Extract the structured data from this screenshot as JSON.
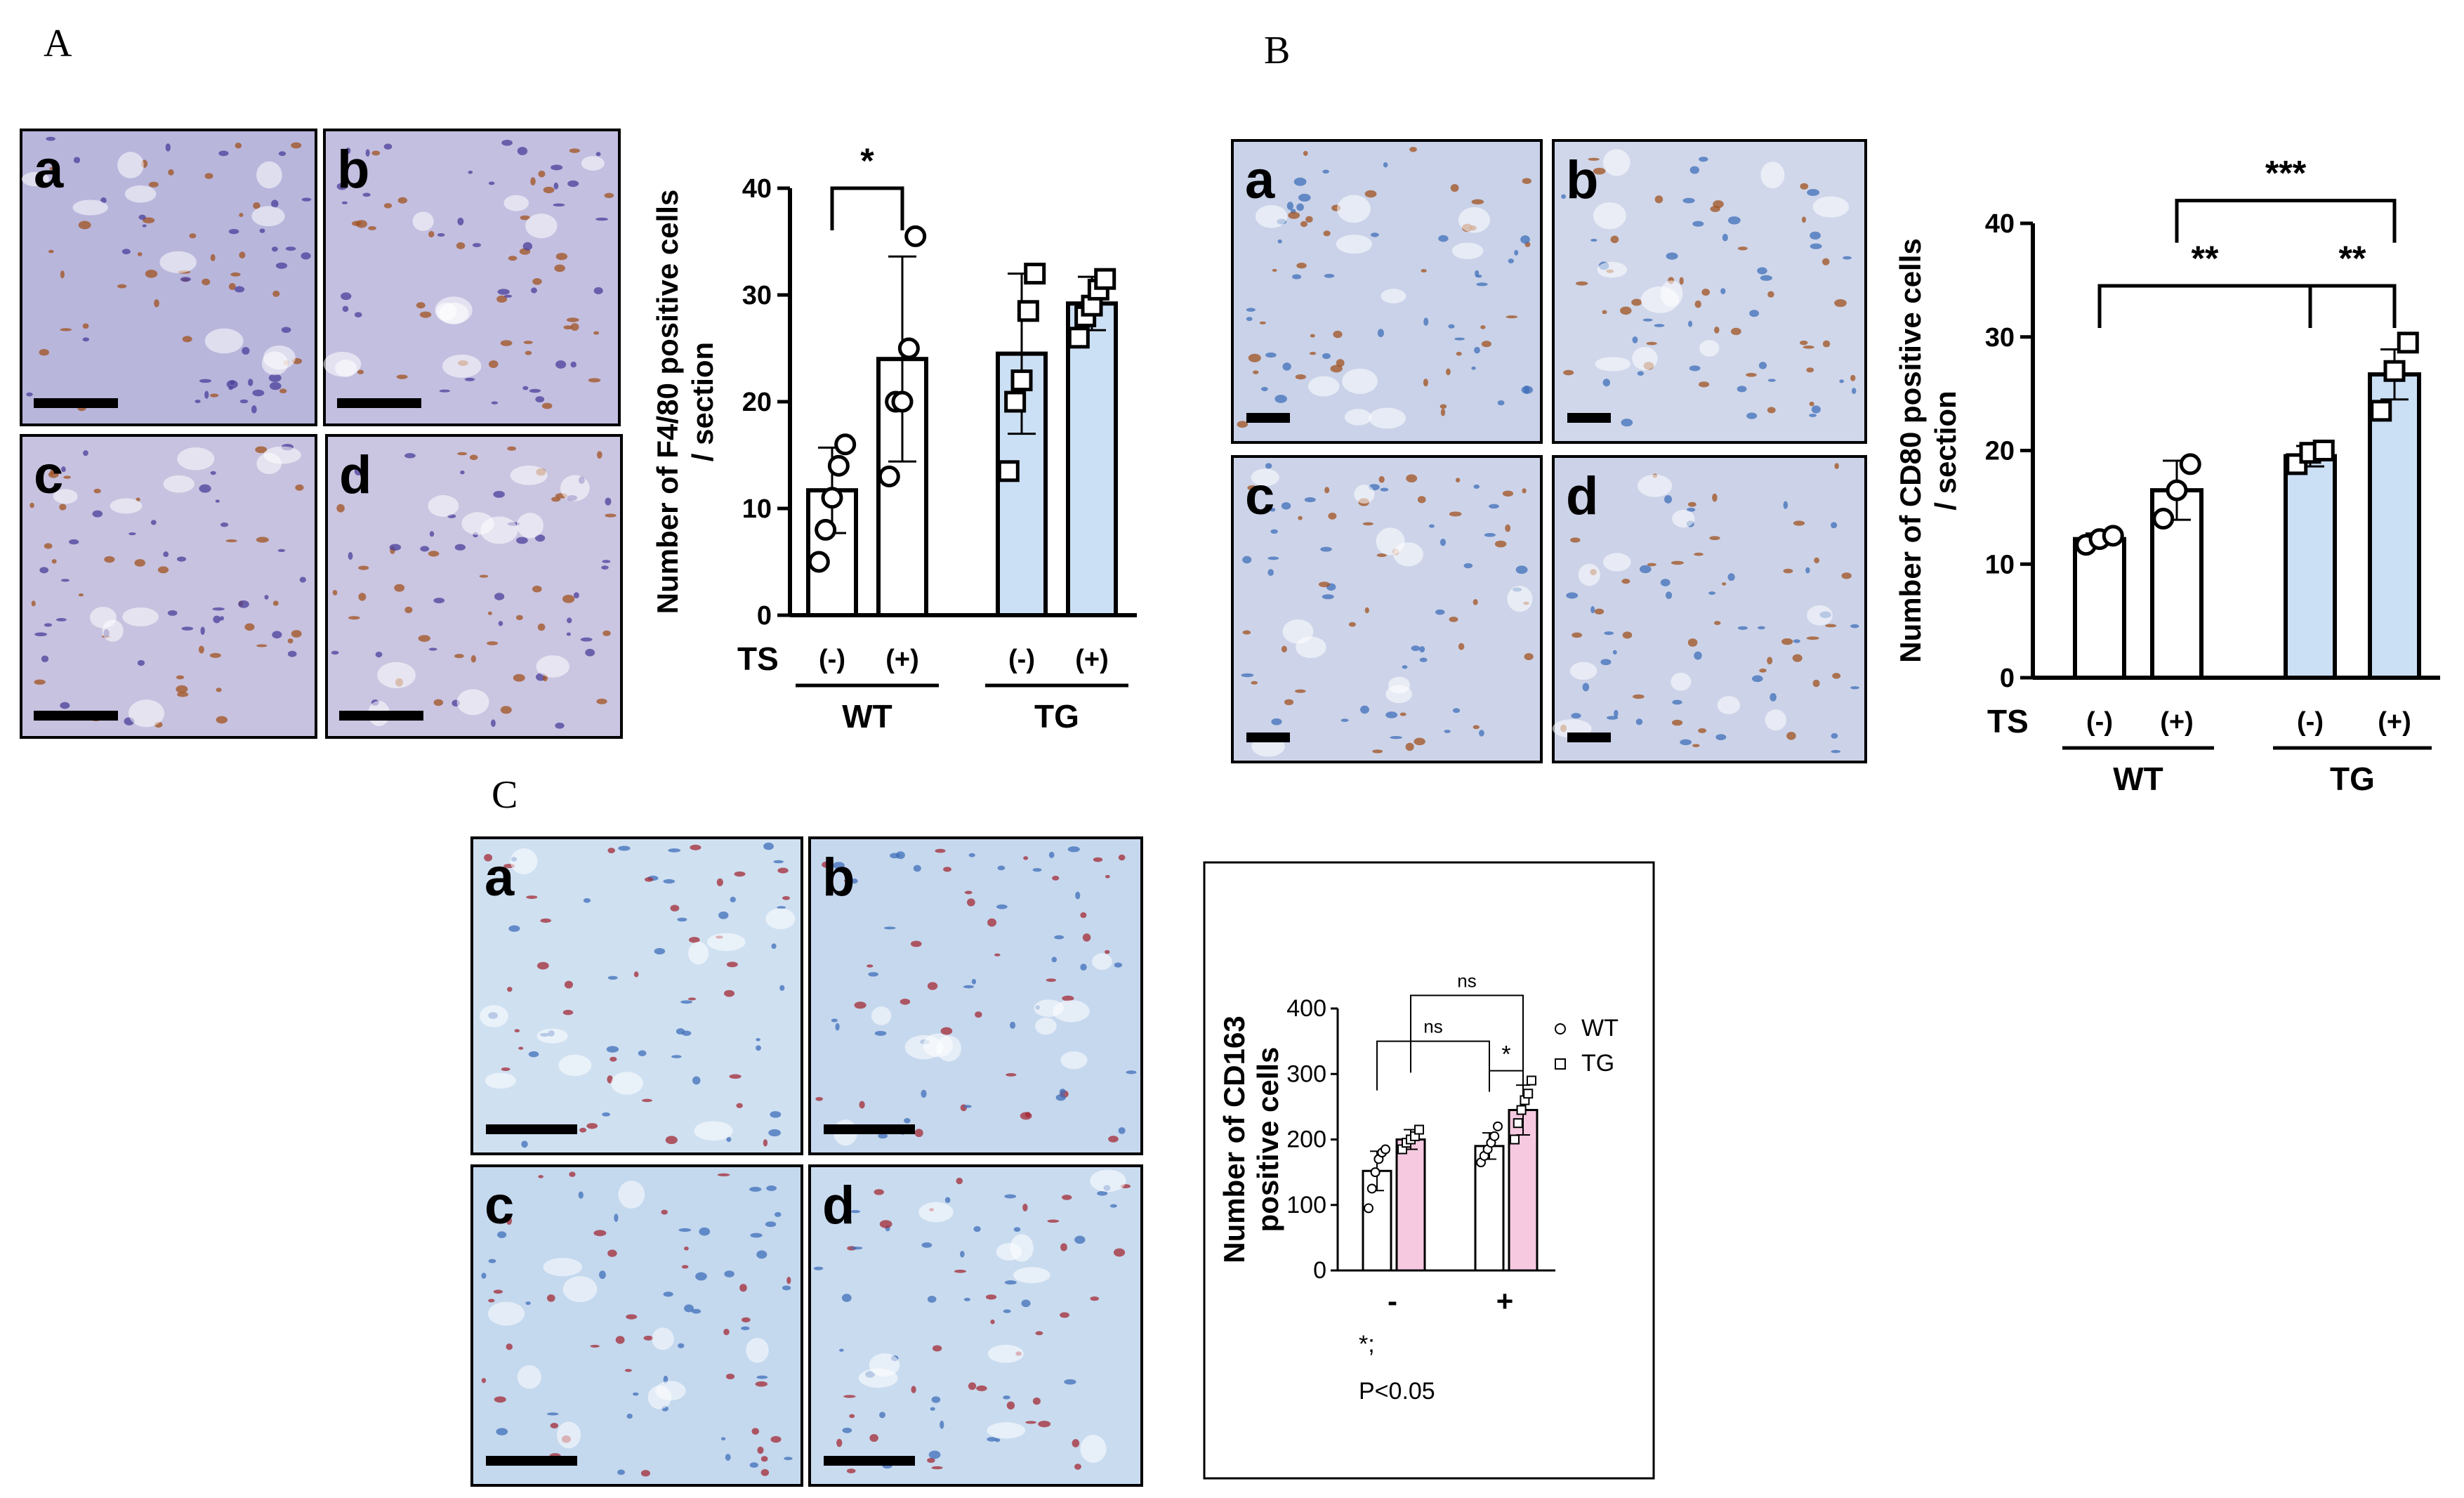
{
  "panels": {
    "A": "A",
    "B": "B",
    "C": "C"
  },
  "images": {
    "A": [
      {
        "label": "a",
        "color": "#b9b6dc"
      },
      {
        "label": "b",
        "color": "#c3bfe0"
      },
      {
        "label": "c",
        "color": "#c7c2df"
      },
      {
        "label": "d",
        "color": "#cac5e1"
      }
    ],
    "B": [
      {
        "label": "a",
        "color": "#c9d2e8"
      },
      {
        "label": "b",
        "color": "#d0d7ea"
      },
      {
        "label": "c",
        "color": "#cdd4e9"
      },
      {
        "label": "d",
        "color": "#ccd3e8"
      }
    ],
    "C": [
      {
        "label": "a",
        "color": "#cfe0f1"
      },
      {
        "label": "b",
        "color": "#c6d8ee"
      },
      {
        "label": "c",
        "color": "#c4d8ee"
      },
      {
        "label": "d",
        "color": "#c9dbef"
      }
    ],
    "colors": {
      "dots_purple": "#4a3f9b",
      "dots_brown": "#a0521f",
      "dots_blue": "#3f6fb9",
      "dots_red": "#a32a34"
    }
  },
  "chart_data": [
    {
      "type": "bar",
      "panel": "A",
      "ylabel_line1": "Number of F4/80 positive cells",
      "ylabel_line2": "/ section",
      "ylim": [
        0,
        40
      ],
      "yticks": [
        0,
        10,
        20,
        30,
        40
      ],
      "ts_label": "TS",
      "categories": [
        "(-)",
        "(+)",
        "(-)",
        "(+)"
      ],
      "groups": [
        "WT",
        "TG"
      ],
      "values": [
        11.7,
        24.0,
        24.5,
        29.2
      ],
      "errors": [
        4.0,
        9.6,
        7.5,
        2.5
      ],
      "points": [
        [
          5,
          8,
          11,
          14,
          16
        ],
        [
          13,
          20,
          20,
          25,
          35.5
        ],
        [
          13.5,
          20,
          22,
          28.5,
          32
        ],
        [
          26,
          28,
          29,
          30.5,
          31.5
        ]
      ],
      "fill": [
        "#ffffff",
        "#ffffff",
        "#cce0f5",
        "#cce0f5"
      ],
      "markers": [
        "circle",
        "circle",
        "square",
        "square"
      ],
      "significance": [
        {
          "from": 0,
          "to": 1,
          "label": "*",
          "y": 40
        }
      ]
    },
    {
      "type": "bar",
      "panel": "B",
      "ylabel_line1": "Number of CD80 positive cells",
      "ylabel_line2": "/ section",
      "ylim": [
        0,
        40
      ],
      "yticks": [
        0,
        10,
        20,
        30,
        40
      ],
      "ts_label": "TS",
      "categories": [
        "(-)",
        "(+)",
        "(-)",
        "(+)"
      ],
      "groups": [
        "WT",
        "TG"
      ],
      "values": [
        12.2,
        16.5,
        19.5,
        26.7
      ],
      "errors": [
        0.5,
        2.6,
        0.9,
        2.2
      ],
      "points": [
        [
          11.7,
          12.2,
          12.5
        ],
        [
          14,
          16.5,
          18.8
        ],
        [
          18.8,
          19.8,
          20
        ],
        [
          23.5,
          27,
          29.5
        ]
      ],
      "fill": [
        "#ffffff",
        "#ffffff",
        "#cce0f5",
        "#cce0f5"
      ],
      "markers": [
        "circle",
        "circle",
        "square",
        "square"
      ],
      "significance": [
        {
          "from": 0,
          "to": 2,
          "label": "**",
          "y": 34.5
        },
        {
          "from": 2,
          "to": 3,
          "label": "**",
          "y": 34.5
        },
        {
          "from": 1,
          "to": 3,
          "label": "***",
          "y": 42
        }
      ]
    },
    {
      "type": "bar",
      "panel": "C",
      "ylabel_line1": "Number of CD163",
      "ylabel_line2": "positive cells",
      "ylim": [
        0,
        400
      ],
      "yticks": [
        0,
        100,
        200,
        300,
        400
      ],
      "categories": [
        "-",
        "+"
      ],
      "series": [
        {
          "name": "WT",
          "values": [
            152,
            190
          ],
          "errors": [
            30,
            20
          ],
          "points": [
            [
              95,
              125,
              150,
              170,
              180,
              185
            ],
            [
              165,
              175,
              185,
              195,
              205,
              220
            ]
          ],
          "fill": "#ffffff",
          "marker": "circle"
        },
        {
          "name": "TG",
          "values": [
            200,
            245
          ],
          "errors": [
            15,
            38
          ],
          "points": [
            [
              185,
              195,
              200,
              205,
              215
            ],
            [
              200,
              225,
              245,
              260,
              270,
              290
            ]
          ],
          "fill": "#f6c9e0",
          "marker": "square"
        }
      ],
      "significance": [
        {
          "label": "ns",
          "y": 350
        },
        {
          "label": "*",
          "y": 305
        },
        {
          "label": "ns",
          "y": 420
        }
      ],
      "note_line1": "*;",
      "note_line2": "P<0.05"
    }
  ]
}
